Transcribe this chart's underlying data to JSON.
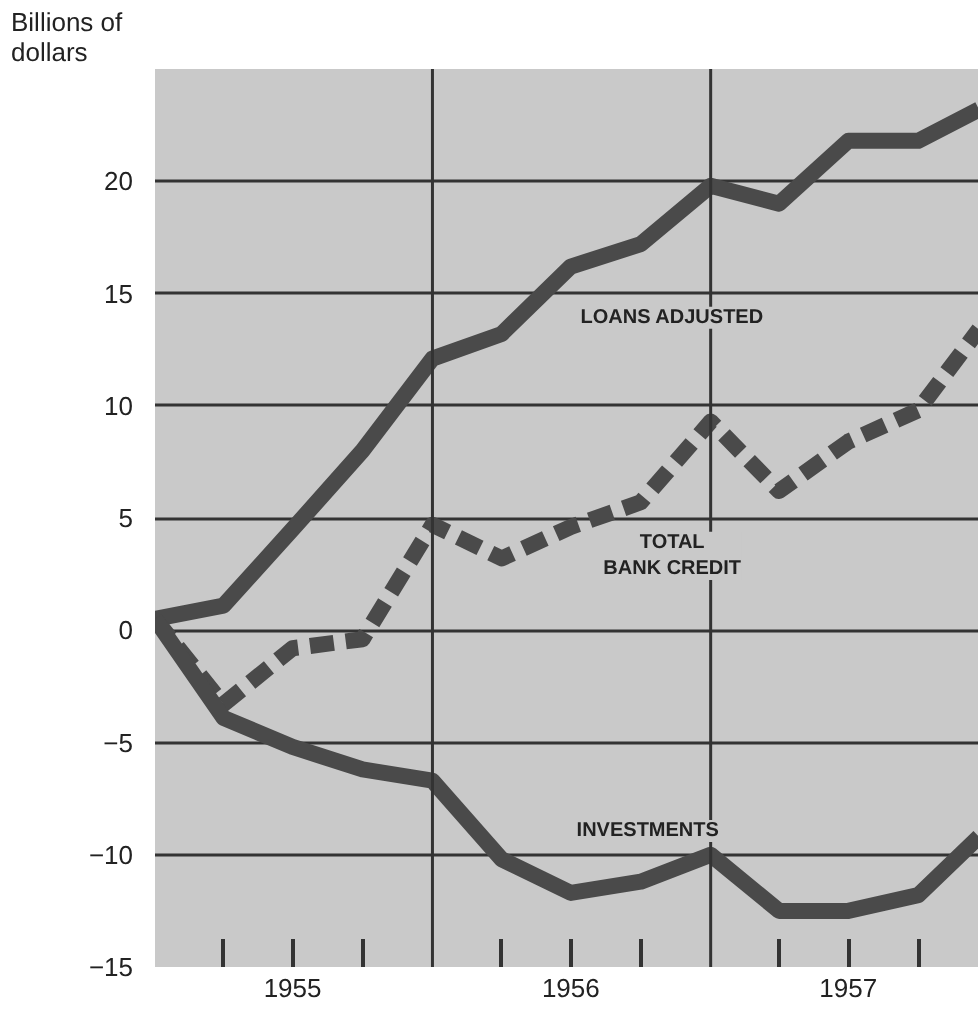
{
  "chart_data": {
    "type": "line",
    "ylabel": "Billions of\ndollars",
    "x": [
      "1955-01-01",
      "1955-04-01",
      "1955-07-01",
      "1955-10-01",
      "1956-01-01",
      "1956-04-01",
      "1956-07-01",
      "1956-10-01",
      "1957-01-01",
      "1957-04-01",
      "1957-07-01",
      "1957-10-01",
      "1957-12-20"
    ],
    "series": [
      {
        "name": "LOANS ADJUSTED",
        "color": "#4a4a4a",
        "line_style": "solid",
        "values": [
          0.5,
          1.1,
          4.5,
          8,
          12.1,
          13.2,
          16.2,
          17.2,
          19.8,
          19,
          21.8,
          21.8,
          23.2
        ]
      },
      {
        "name": "TOTAL\nBANK CREDIT",
        "color": "#4a4a4a",
        "line_style": "dashed",
        "values": [
          0.5,
          -3.3,
          -0.8,
          -0.4,
          4.7,
          3.2,
          4.6,
          5.7,
          9.3,
          6.2,
          8.4,
          9.8,
          13.4
        ]
      },
      {
        "name": "INVESTMENTS",
        "color": "#4a4a4a",
        "line_style": "solid",
        "values": [
          0.5,
          -3.9,
          -5.2,
          -6.2,
          -6.7,
          -10.2,
          -11.7,
          -11.2,
          -10,
          -12.5,
          -12.5,
          -11.8,
          -9.2
        ]
      }
    ],
    "xlim": [
      "1955-01-01",
      "1957-12-20"
    ],
    "xticks": [
      {
        "value": "1955-04-01",
        "label": null
      },
      {
        "value": "1955-07-01",
        "label": "1955"
      },
      {
        "value": "1955-10-01",
        "label": null
      },
      {
        "value": "1956-04-01",
        "label": null
      },
      {
        "value": "1956-07-01",
        "label": "1956"
      },
      {
        "value": "1956-10-01",
        "label": null
      },
      {
        "value": "1957-04-01",
        "label": null
      },
      {
        "value": "1957-07-01",
        "label": "1957"
      },
      {
        "value": "1957-10-01",
        "label": null
      }
    ],
    "ref_lines": [
      {
        "axis": "x",
        "value": "1956-01-01",
        "label": null
      },
      {
        "axis": "x",
        "value": "1957-01-01",
        "label": null
      }
    ],
    "ylim": [
      -15,
      25
    ],
    "yticks": [
      {
        "value": -15,
        "label": "−15"
      },
      {
        "value": -10,
        "label": "−10"
      },
      {
        "value": -5,
        "label": "−5"
      },
      0,
      5,
      10,
      15,
      20
    ],
    "grid": "y",
    "marker": "none"
  }
}
